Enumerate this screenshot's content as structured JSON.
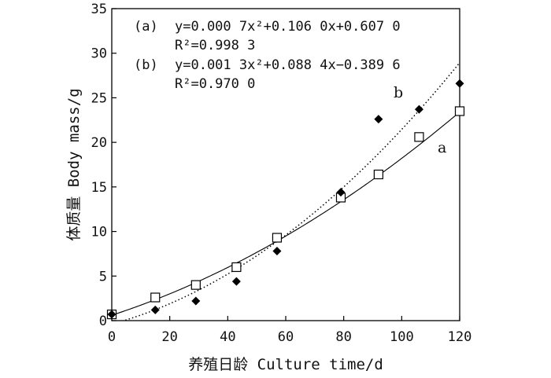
{
  "chart_data": {
    "type": "scatter",
    "title": "",
    "xlabel": "养殖日龄 Culture time/d",
    "ylabel": "体质量 Body mass/g",
    "xlim": [
      0,
      120
    ],
    "ylim": [
      0,
      35
    ],
    "xticks": [
      0,
      20,
      40,
      60,
      80,
      100,
      120
    ],
    "yticks": [
      0,
      5,
      10,
      15,
      20,
      25,
      30,
      35
    ],
    "grid": false,
    "annotations": [
      {
        "prefix": "(a)",
        "equation": "y=0.000 7x²+0.106 0x+0.607 0",
        "r2": "R²=0.998 3"
      },
      {
        "prefix": "(b)",
        "equation": "y=0.001 3x²+0.088 4x−0.389 6",
        "r2": "R²=0.970 0"
      }
    ],
    "series": [
      {
        "name": "a",
        "marker": "open-square",
        "fit_line": "solid",
        "coef": [
          0.0007,
          0.106,
          0.607
        ],
        "x": [
          0,
          15,
          29,
          43,
          57,
          79,
          92,
          106,
          120
        ],
        "y": [
          0.7,
          2.6,
          4.0,
          6.0,
          9.3,
          13.8,
          16.4,
          20.6,
          23.5
        ]
      },
      {
        "name": "b",
        "marker": "filled-diamond",
        "fit_line": "dotted",
        "coef": [
          0.0013,
          0.0884,
          -0.3896
        ],
        "x": [
          0,
          15,
          29,
          43,
          57,
          79,
          92,
          106,
          120
        ],
        "y": [
          0.7,
          1.2,
          2.2,
          4.4,
          7.8,
          14.4,
          22.6,
          23.7,
          26.6
        ]
      }
    ]
  }
}
